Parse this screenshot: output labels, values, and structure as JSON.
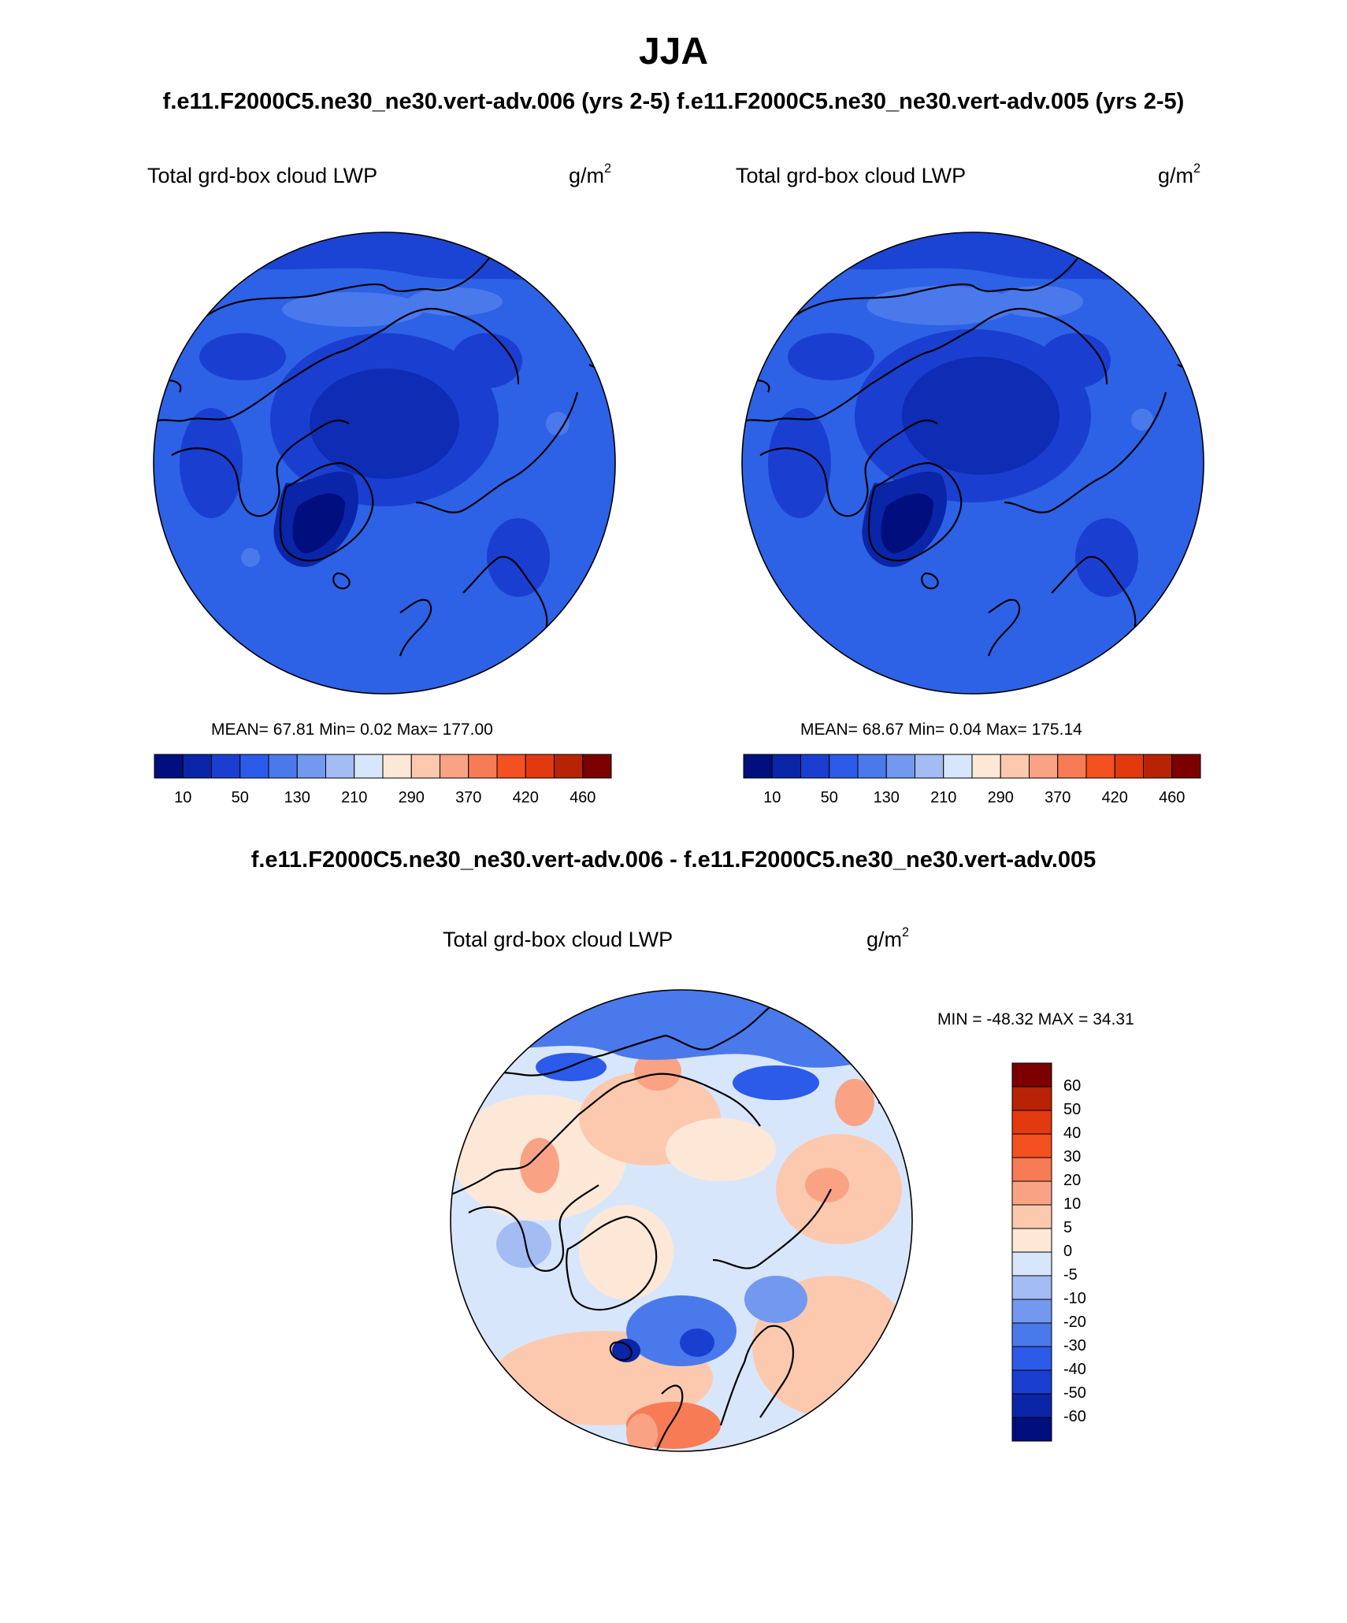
{
  "title": "JJA",
  "subtitle": "f.e11.F2000C5.ne30_ne30.vert-adv.006 (yrs 2-5) f.e11.F2000C5.ne30_ne30.vert-adv.005 (yrs 2-5)",
  "diff_title": "f.e11.F2000C5.ne30_ne30.vert-adv.006 - f.e11.F2000C5.ne30_ne30.vert-adv.005",
  "colors": {
    "base_blue": "#2d62e6",
    "palette_main": [
      "#000e7e",
      "#0a25a8",
      "#1a3fd0",
      "#2b5be8",
      "#4a79ec",
      "#7398f0",
      "#a3bcf4",
      "#d8e6fb",
      "#fde8d8",
      "#fcc9af",
      "#f9a384",
      "#f77b54",
      "#f5501f",
      "#e2390f",
      "#b82306",
      "#7d0000"
    ],
    "palette_diff": [
      "#000e7e",
      "#0a25a8",
      "#1a3fd0",
      "#2b5be8",
      "#4a79ec",
      "#7398f0",
      "#a3bcf4",
      "#d8e6fb",
      "#fde8d8",
      "#fcc9af",
      "#f9a384",
      "#f77b54",
      "#f5501f",
      "#e2390f",
      "#b82306",
      "#7d0000"
    ]
  },
  "panels": [
    {
      "label": "Total grd-box cloud LWP",
      "units_base": "g/m",
      "units_exp": "2",
      "stats": "MEAN=  67.81  Min=   0.02  Max= 177.00",
      "colorbar_ticks": [
        "10",
        "50",
        "130",
        "210",
        "290",
        "370",
        "420",
        "460"
      ]
    },
    {
      "label": "Total grd-box cloud LWP",
      "units_base": "g/m",
      "units_exp": "2",
      "stats": "MEAN=  68.67  Min=   0.04  Max= 175.14",
      "colorbar_ticks": [
        "10",
        "50",
        "130",
        "210",
        "290",
        "370",
        "420",
        "460"
      ]
    },
    {
      "label": "Total grd-box cloud LWP",
      "units_base": "g/m",
      "units_exp": "2",
      "stats": "MIN = -48.32 MAX =  34.31",
      "colorbar_ticks": [
        "60",
        "50",
        "40",
        "30",
        "20",
        "10",
        "5",
        "0",
        "-5",
        "-10",
        "-20",
        "-30",
        "-40",
        "-50",
        "-60"
      ]
    }
  ]
}
